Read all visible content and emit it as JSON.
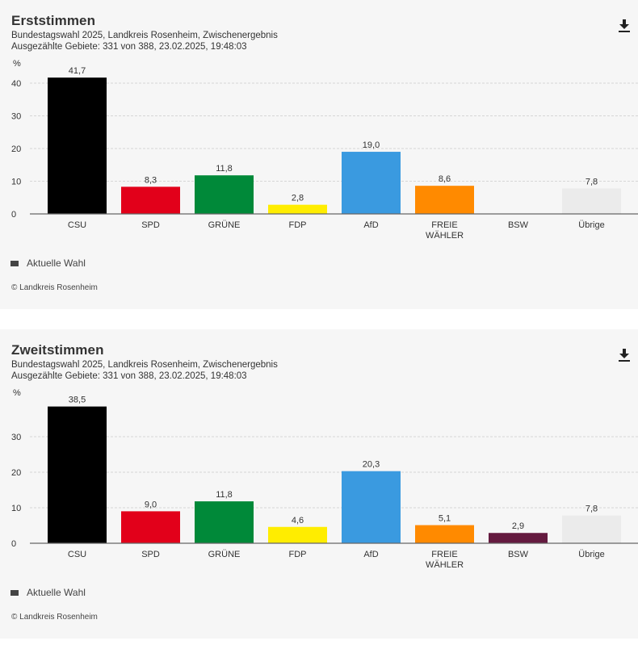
{
  "colors": {
    "CSU": "#000000",
    "SPD": "#e2001a",
    "GRÜNE": "#008939",
    "FDP": "#ffed00",
    "AfD": "#3a9ae0",
    "FREIE WÄHLER": "#ff8a00",
    "BSW": "#641a3f",
    "Übrige": "#ebebeb",
    "legend": "#444444"
  },
  "charts": [
    {
      "title": "Erststimmen",
      "subtitle1": "Bundestagswahl 2025, Landkreis Rosenheim, Zwischenergebnis",
      "subtitle2": "Ausgezählte Gebiete: 331 von 388, 23.02.2025, 19:48:03",
      "download_icon": "download-icon",
      "legend_label": "Aktuelle Wahl",
      "copyright": "© Landkreis Rosenheim"
    },
    {
      "title": "Zweitstimmen",
      "subtitle1": "Bundestagswahl 2025, Landkreis Rosenheim, Zwischenergebnis",
      "subtitle2": "Ausgezählte Gebiete: 331 von 388, 23.02.2025, 19:48:03",
      "download_icon": "download-icon",
      "legend_label": "Aktuelle Wahl",
      "copyright": "© Landkreis Rosenheim"
    }
  ],
  "chart_data": [
    {
      "type": "bar",
      "title": "Erststimmen",
      "ylabel": "%",
      "xlabel": "",
      "categories": [
        "CSU",
        "SPD",
        "GRÜNE",
        "FDP",
        "AfD",
        "FREIE WÄHLER",
        "BSW",
        "Übrige"
      ],
      "category_lines": [
        [
          "CSU"
        ],
        [
          "SPD"
        ],
        [
          "GRÜNE"
        ],
        [
          "FDP"
        ],
        [
          "AfD"
        ],
        [
          "FREIE",
          "WÄHLER"
        ],
        [
          "BSW"
        ],
        [
          "Übrige"
        ]
      ],
      "values": [
        41.7,
        8.3,
        11.8,
        2.8,
        19.0,
        8.6,
        null,
        7.8
      ],
      "value_labels": [
        "41,7",
        "8,3",
        "11,8",
        "2,8",
        "19,0",
        "8,6",
        "",
        "7,8"
      ],
      "yticks": [
        0,
        10,
        20,
        30,
        40
      ],
      "ytick_labels": [
        "0",
        "10",
        "20",
        "30",
        "40"
      ],
      "ylim": [
        0,
        43
      ],
      "grid": true,
      "legend": [
        "Aktuelle Wahl"
      ],
      "legend_position": "bottom-left"
    },
    {
      "type": "bar",
      "title": "Zweitstimmen",
      "ylabel": "%",
      "xlabel": "",
      "categories": [
        "CSU",
        "SPD",
        "GRÜNE",
        "FDP",
        "AfD",
        "FREIE WÄHLER",
        "BSW",
        "Übrige"
      ],
      "category_lines": [
        [
          "CSU"
        ],
        [
          "SPD"
        ],
        [
          "GRÜNE"
        ],
        [
          "FDP"
        ],
        [
          "AfD"
        ],
        [
          "FREIE",
          "WÄHLER"
        ],
        [
          "BSW"
        ],
        [
          "Übrige"
        ]
      ],
      "values": [
        38.5,
        9.0,
        11.8,
        4.6,
        20.3,
        5.1,
        2.9,
        7.8
      ],
      "value_labels": [
        "38,5",
        "9,0",
        "11,8",
        "4,6",
        "20,3",
        "5,1",
        "2,9",
        "7,8"
      ],
      "yticks": [
        0,
        10,
        20,
        30
      ],
      "ytick_labels": [
        "0",
        "10",
        "20",
        "30"
      ],
      "ylim": [
        0,
        40
      ],
      "grid": true,
      "legend": [
        "Aktuelle Wahl"
      ],
      "legend_position": "bottom-left"
    }
  ]
}
